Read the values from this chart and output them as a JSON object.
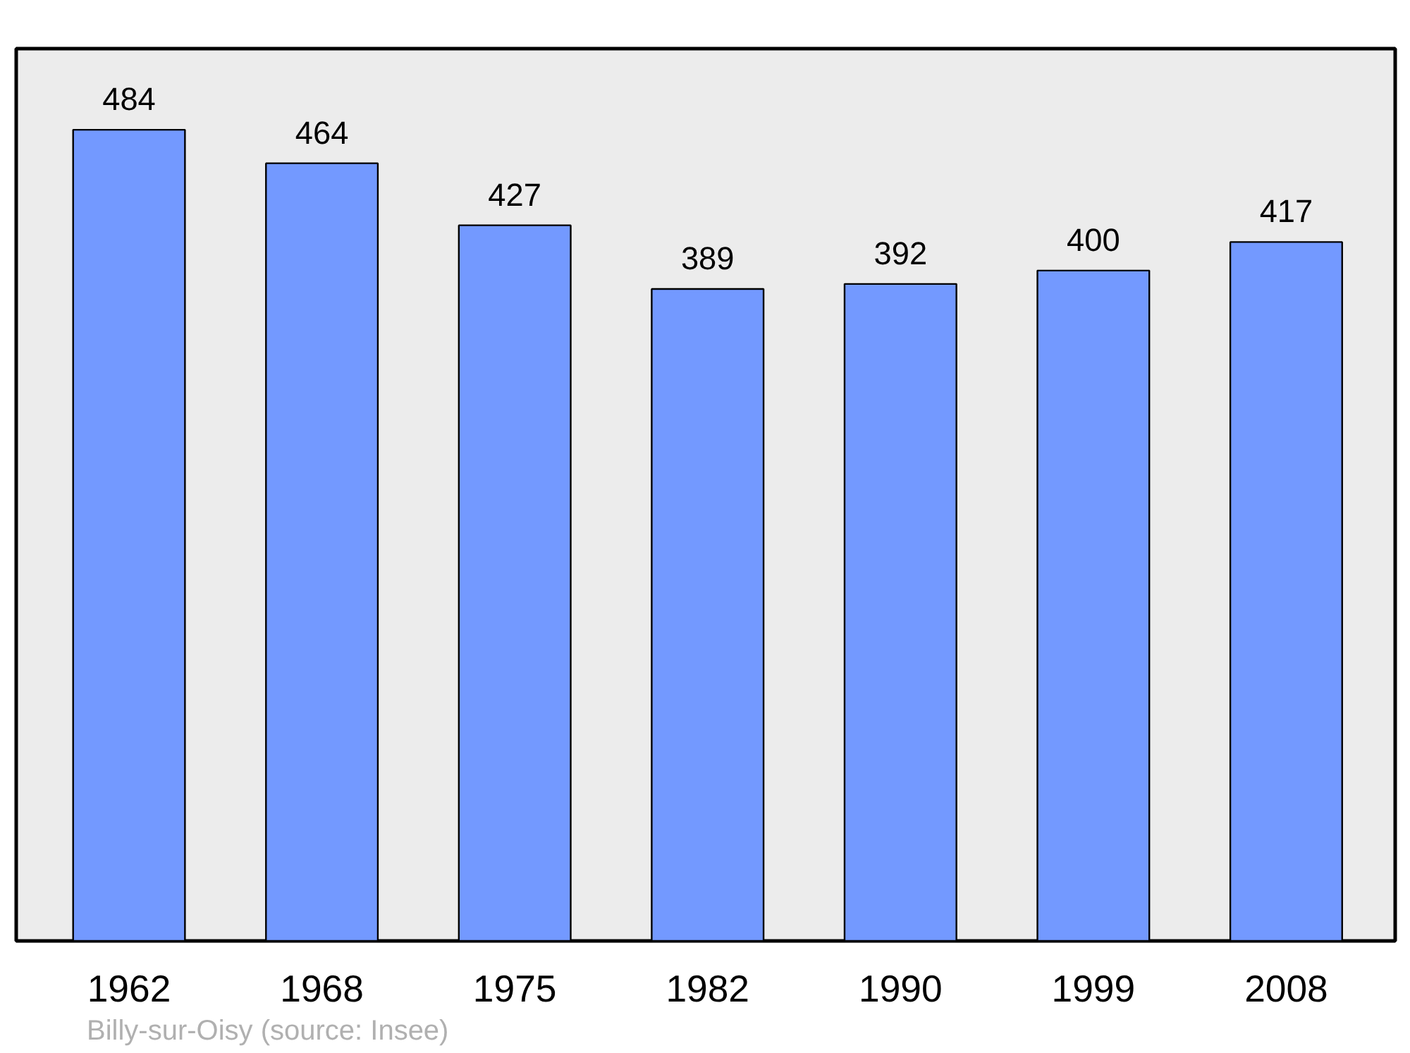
{
  "chart_data": {
    "type": "bar",
    "categories": [
      "1962",
      "1968",
      "1975",
      "1982",
      "1990",
      "1999",
      "2008"
    ],
    "values": [
      484,
      464,
      427,
      389,
      392,
      400,
      417
    ],
    "color": "#7399ff",
    "data_labels": true,
    "grid": false,
    "tick_labels": "x",
    "annotations": [
      "Billy-sur-Oisy    (source: Insee)"
    ]
  }
}
